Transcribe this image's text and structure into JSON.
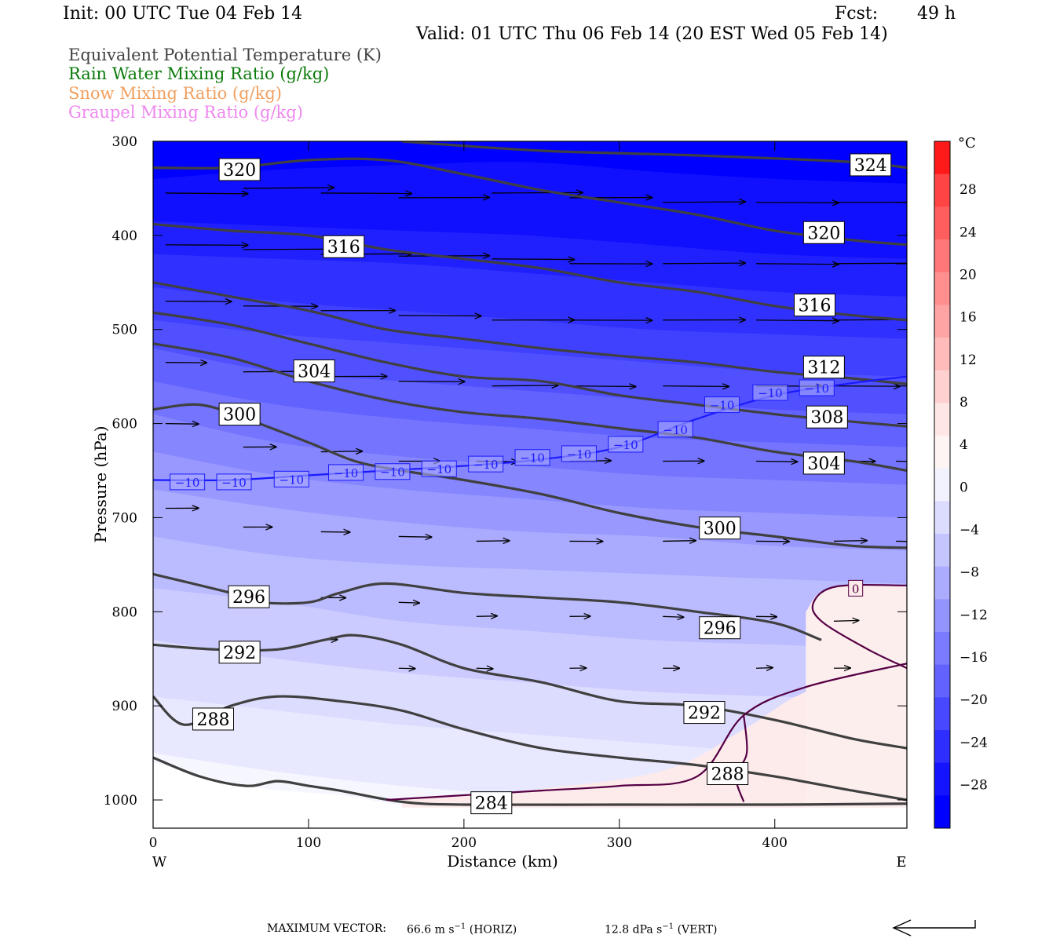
{
  "header": {
    "init": "Init: 00 UTC Tue 04 Feb 14",
    "fcst_label": "Fcst:",
    "fcst_value": "49 h",
    "valid": "Valid: 01 UTC Thu 06 Feb 14 (20 EST Wed 05 Feb 14)"
  },
  "legend": {
    "items": [
      {
        "label": "Equivalent Potential Temperature (K)",
        "color": "#444444"
      },
      {
        "label": "Rain Water Mixing Ratio (g/kg)",
        "color": "#0a7a0a"
      },
      {
        "label": "Snow Mixing Ratio (g/kg)",
        "color": "#f0a060"
      },
      {
        "label": "Graupel Mixing Ratio (g/kg)",
        "color": "#ee88ee"
      }
    ]
  },
  "chart_data": {
    "type": "cross-section",
    "xlabel": "Distance (km)",
    "ylabel": "Pressure (hPa)",
    "xlim": [
      0,
      485
    ],
    "ylim": [
      1030,
      300
    ],
    "x_ticks": [
      0,
      100,
      200,
      300,
      400
    ],
    "y_ticks": [
      300,
      400,
      500,
      600,
      700,
      800,
      900,
      1000
    ],
    "x_start_label": "W",
    "x_end_label": "E",
    "colorbar": {
      "unit": "°C",
      "ticks": [
        28,
        24,
        20,
        16,
        12,
        8,
        4,
        0,
        -4,
        -8,
        -12,
        -16,
        -20,
        -24,
        -28
      ],
      "colors": [
        "#ff1a1a",
        "#ff4444",
        "#ff5e5e",
        "#ff7777",
        "#ff8e8e",
        "#ffa4a4",
        "#ffbaba",
        "#ffd0d0",
        "#ffe6e6",
        "#fff4f4",
        "#f2f2ff",
        "#dcdcff",
        "#c4c4ff",
        "#acacff",
        "#9494ff",
        "#7b7bff",
        "#6262ff",
        "#4848ff",
        "#2e2eff",
        "#1414ff",
        "#0000ff"
      ]
    },
    "temperature_bands": [
      {
        "temp": -30,
        "x": [
          0,
          80,
          160,
          240,
          320,
          400,
          485
        ],
        "p": [
          340,
          330,
          325,
          322,
          332,
          340,
          345
        ]
      },
      {
        "temp": -28,
        "x": [
          0,
          80,
          160,
          240,
          320,
          400,
          485
        ],
        "p": [
          385,
          390,
          395,
          400,
          410,
          420,
          425
        ]
      },
      {
        "temp": -26,
        "x": [
          0,
          80,
          160,
          240,
          320,
          400,
          485
        ],
        "p": [
          420,
          425,
          430,
          440,
          450,
          460,
          465
        ]
      },
      {
        "temp": -24,
        "x": [
          0,
          80,
          160,
          240,
          320,
          400,
          485
        ],
        "p": [
          455,
          470,
          480,
          490,
          500,
          505,
          510
        ]
      },
      {
        "temp": -22,
        "x": [
          0,
          80,
          160,
          240,
          320,
          400,
          485
        ],
        "p": [
          490,
          505,
          515,
          525,
          535,
          545,
          550
        ]
      },
      {
        "temp": -20,
        "x": [
          0,
          80,
          160,
          240,
          320,
          400,
          485
        ],
        "p": [
          520,
          545,
          555,
          565,
          575,
          585,
          590
        ]
      },
      {
        "temp": -18,
        "x": [
          0,
          80,
          160,
          240,
          320,
          400,
          485
        ],
        "p": [
          555,
          580,
          595,
          605,
          615,
          620,
          625
        ]
      },
      {
        "temp": -16,
        "x": [
          0,
          80,
          160,
          240,
          320,
          400,
          485
        ],
        "p": [
          590,
          620,
          635,
          645,
          655,
          660,
          665
        ]
      },
      {
        "temp": -14,
        "x": [
          0,
          80,
          160,
          240,
          320,
          400,
          485
        ],
        "p": [
          630,
          655,
          670,
          680,
          690,
          695,
          700
        ]
      },
      {
        "temp": -12,
        "x": [
          0,
          80,
          160,
          240,
          320,
          400,
          485
        ],
        "p": [
          670,
          690,
          705,
          715,
          720,
          730,
          735
        ]
      },
      {
        "temp": -10,
        "x": [
          0,
          80,
          160,
          240,
          320,
          400,
          485
        ],
        "p": [
          720,
          740,
          750,
          755,
          760,
          765,
          770
        ]
      },
      {
        "temp": -8,
        "x": [
          0,
          80,
          160,
          240,
          320,
          400,
          485
        ],
        "p": [
          775,
          790,
          810,
          820,
          830,
          835,
          840
        ]
      },
      {
        "temp": -6,
        "x": [
          0,
          80,
          160,
          240,
          320,
          400,
          485
        ],
        "p": [
          830,
          850,
          865,
          875,
          885,
          890,
          895
        ]
      },
      {
        "temp": -4,
        "x": [
          0,
          80,
          160,
          240,
          320,
          400,
          485
        ],
        "p": [
          890,
          905,
          920,
          930,
          940,
          950,
          955
        ]
      },
      {
        "temp": -2,
        "x": [
          0,
          80,
          160,
          240,
          320,
          400,
          485
        ],
        "p": [
          950,
          970,
          985,
          995,
          1000,
          1005,
          1010
        ]
      }
    ],
    "warm_region": {
      "x": [
        160,
        240,
        320,
        380,
        420,
        485,
        485,
        430,
        420,
        485,
        485,
        160
      ],
      "p": [
        1000,
        990,
        970,
        935,
        885,
        855,
        1030,
        1030,
        1030,
        1030,
        1030,
        1030
      ]
    },
    "theta_e_contours": [
      {
        "value": "324",
        "x": [
          160,
          250,
          350,
          450,
          485
        ],
        "p": [
          300,
          310,
          315,
          322,
          328
        ],
        "label_at": [
          448,
          325
        ]
      },
      {
        "value": "320",
        "x": [
          0,
          50,
          100,
          150,
          200,
          250,
          300,
          350,
          400,
          450,
          485
        ],
        "p": [
          328,
          328,
          320,
          320,
          335,
          352,
          365,
          378,
          395,
          405,
          410
        ],
        "label_at": [
          42,
          330
        ]
      },
      {
        "value": "320",
        "x": [],
        "p": [],
        "label_at": [
          418,
          397
        ]
      },
      {
        "value": "316",
        "x": [
          0,
          50,
          100,
          150,
          200,
          250,
          300,
          350,
          400,
          450,
          485
        ],
        "p": [
          388,
          395,
          400,
          415,
          425,
          435,
          450,
          460,
          475,
          485,
          490
        ],
        "label_at": [
          109,
          412
        ]
      },
      {
        "value": "316",
        "x": [],
        "p": [],
        "label_at": [
          412,
          474
        ]
      },
      {
        "value": "312",
        "x": [
          0,
          50,
          100,
          150,
          200,
          250,
          300,
          350,
          400,
          450,
          485
        ],
        "p": [
          450,
          465,
          480,
          500,
          510,
          520,
          528,
          535,
          545,
          552,
          558
        ],
        "label_at": [
          418,
          540
        ]
      },
      {
        "value": "308",
        "x": [
          0,
          50,
          100,
          150,
          200,
          250,
          300,
          350,
          400,
          450,
          485
        ],
        "p": [
          482,
          495,
          515,
          535,
          550,
          555,
          570,
          580,
          590,
          598,
          603
        ],
        "label_at": [
          420,
          593
        ]
      },
      {
        "value": "304",
        "x": [
          0,
          50,
          100,
          150,
          200,
          250,
          300,
          350,
          400,
          450,
          485
        ],
        "p": [
          515,
          530,
          555,
          575,
          588,
          595,
          605,
          615,
          630,
          640,
          650
        ],
        "label_at": [
          90,
          544
        ]
      },
      {
        "value": "304",
        "x": [],
        "p": [],
        "label_at": [
          418,
          642
        ]
      },
      {
        "value": "300",
        "x": [
          0,
          30,
          60,
          100,
          130,
          160,
          200,
          250,
          300,
          350,
          400,
          450,
          485
        ],
        "p": [
          585,
          580,
          595,
          620,
          640,
          650,
          660,
          675,
          695,
          710,
          720,
          730,
          732
        ],
        "label_at": [
          42,
          590
        ]
      },
      {
        "value": "300",
        "x": [],
        "p": [],
        "label_at": [
          351,
          711
        ]
      },
      {
        "value": "296",
        "x": [
          0,
          50,
          70,
          100,
          120,
          150,
          200,
          250,
          300,
          350,
          400,
          430
        ],
        "p": [
          760,
          780,
          790,
          790,
          780,
          770,
          780,
          785,
          790,
          800,
          812,
          830
        ],
        "label_at": [
          48,
          784
        ]
      },
      {
        "value": "296",
        "x": [],
        "p": [],
        "label_at": [
          351,
          817
        ]
      },
      {
        "value": "292",
        "x": [
          0,
          40,
          80,
          110,
          130,
          160,
          200,
          250,
          300,
          350,
          400,
          450,
          485
        ],
        "p": [
          835,
          840,
          840,
          830,
          825,
          835,
          860,
          875,
          895,
          900,
          915,
          935,
          945
        ],
        "label_at": [
          42,
          843
        ]
      },
      {
        "value": "292",
        "x": [],
        "p": [],
        "label_at": [
          341,
          907
        ]
      },
      {
        "value": "288",
        "x": [
          0,
          20,
          50,
          80,
          120,
          160,
          200,
          250,
          300,
          350,
          400,
          450,
          485
        ],
        "p": [
          890,
          920,
          900,
          890,
          895,
          905,
          925,
          945,
          955,
          963,
          975,
          990,
          1000
        ],
        "label_at": [
          25,
          914
        ]
      },
      {
        "value": "288",
        "x": [],
        "p": [],
        "label_at": [
          356,
          972
        ]
      },
      {
        "value": "284",
        "x": [
          0,
          30,
          60,
          80,
          100,
          120,
          160,
          200,
          300,
          400,
          485
        ],
        "p": [
          955,
          975,
          985,
          980,
          985,
          990,
          1002,
          1005,
          1005,
          1005,
          1004
        ],
        "label_at": [
          204,
          1003
        ]
      }
    ],
    "isotherm_minus10": {
      "value": "−10",
      "x": [
        0,
        50,
        100,
        150,
        200,
        250,
        300,
        350,
        400,
        450,
        485
      ],
      "p": [
        660,
        660,
        655,
        650,
        645,
        638,
        625,
        595,
        570,
        557,
        550
      ],
      "labels_at": [
        [
          18,
          662
        ],
        [
          48,
          662
        ],
        [
          85,
          659
        ],
        [
          120,
          652
        ],
        [
          150,
          651
        ],
        [
          180,
          648
        ],
        [
          210,
          643
        ],
        [
          240,
          636
        ],
        [
          270,
          632
        ],
        [
          300,
          622
        ],
        [
          332,
          606
        ],
        [
          362,
          580
        ],
        [
          393,
          567
        ],
        [
          423,
          562
        ]
      ]
    },
    "isotherm_zero": {
      "value": "0",
      "x": [
        150,
        200,
        250,
        300,
        350,
        380,
        420,
        485
      ],
      "p": [
        1000,
        995,
        990,
        985,
        975,
        910,
        880,
        855
      ],
      "labels_at": [
        [
          452,
          775
        ]
      ]
    },
    "wind_arrows": [
      [
        0,
        355,
        100
      ],
      [
        50,
        350,
        110
      ],
      [
        100,
        355,
        110
      ],
      [
        150,
        360,
        110
      ],
      [
        210,
        355,
        110
      ],
      [
        260,
        360,
        100
      ],
      [
        320,
        365,
        100
      ],
      [
        380,
        365,
        100
      ],
      [
        430,
        365,
        100
      ],
      [
        470,
        365,
        100
      ],
      [
        0,
        410,
        100
      ],
      [
        50,
        415,
        110
      ],
      [
        100,
        420,
        110
      ],
      [
        150,
        422,
        110
      ],
      [
        210,
        425,
        100
      ],
      [
        260,
        430,
        100
      ],
      [
        320,
        430,
        100
      ],
      [
        380,
        430,
        100
      ],
      [
        430,
        430,
        100
      ],
      [
        470,
        430,
        100
      ],
      [
        0,
        470,
        80
      ],
      [
        50,
        475,
        90
      ],
      [
        100,
        480,
        90
      ],
      [
        150,
        485,
        100
      ],
      [
        210,
        490,
        100
      ],
      [
        260,
        490,
        100
      ],
      [
        320,
        490,
        100
      ],
      [
        380,
        490,
        100
      ],
      [
        430,
        490,
        100
      ],
      [
        470,
        490,
        100
      ],
      [
        0,
        535,
        50
      ],
      [
        50,
        545,
        70
      ],
      [
        100,
        550,
        80
      ],
      [
        150,
        555,
        80
      ],
      [
        210,
        560,
        80
      ],
      [
        260,
        560,
        80
      ],
      [
        320,
        560,
        80
      ],
      [
        380,
        560,
        80
      ],
      [
        430,
        560,
        80
      ],
      [
        470,
        560,
        80
      ],
      [
        0,
        600,
        40
      ],
      [
        50,
        625,
        40
      ],
      [
        100,
        630,
        50
      ],
      [
        150,
        640,
        50
      ],
      [
        200,
        640,
        50
      ],
      [
        260,
        640,
        50
      ],
      [
        320,
        640,
        50
      ],
      [
        380,
        640,
        50
      ],
      [
        430,
        640,
        50
      ],
      [
        470,
        640,
        50
      ],
      [
        0,
        690,
        40
      ],
      [
        50,
        710,
        35
      ],
      [
        100,
        715,
        35
      ],
      [
        150,
        720,
        40
      ],
      [
        200,
        725,
        40
      ],
      [
        260,
        725,
        40
      ],
      [
        320,
        725,
        40
      ],
      [
        380,
        725,
        40
      ],
      [
        430,
        725,
        40
      ],
      [
        470,
        725,
        40
      ],
      [
        50,
        785,
        30
      ],
      [
        100,
        785,
        30
      ],
      [
        150,
        790,
        25
      ],
      [
        200,
        805,
        25
      ],
      [
        260,
        805,
        25
      ],
      [
        320,
        805,
        25
      ],
      [
        380,
        805,
        25
      ],
      [
        430,
        810,
        30
      ],
      [
        50,
        835,
        20
      ],
      [
        100,
        830,
        20
      ],
      [
        150,
        860,
        20
      ],
      [
        200,
        860,
        20
      ],
      [
        260,
        860,
        20
      ],
      [
        320,
        860,
        20
      ],
      [
        380,
        860,
        20
      ],
      [
        430,
        860,
        20
      ]
    ]
  },
  "footer": {
    "max_vector_label": "MAXIMUM VECTOR:",
    "horiz_value": "66.6 m s",
    "horiz_exp": "−1",
    "horiz_tag": "(HORIZ)",
    "vert_value": "12.8 dPa s",
    "vert_exp": "−1",
    "vert_tag": "(VERT)"
  }
}
